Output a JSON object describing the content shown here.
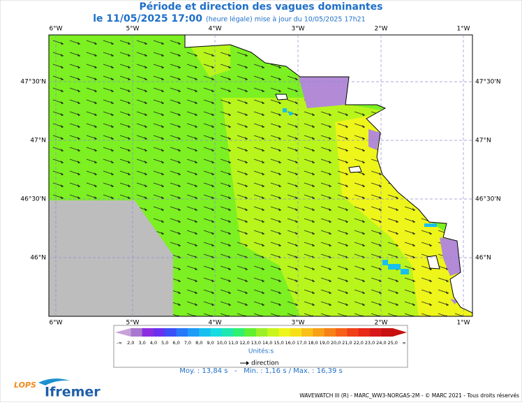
{
  "header": {
    "title": "Période et direction des vagues dominantes",
    "date": "le 11/05/2025 17:00",
    "note": "(heure légale) mise à jour du 10/05/2025 17h21"
  },
  "map": {
    "lon_labels": [
      "6°W",
      "5°W",
      "4°W",
      "3°W",
      "2°W",
      "1°W"
    ],
    "lat_labels": [
      "47°30'N",
      "47°N",
      "46°30'N",
      "46°N"
    ]
  },
  "legend": {
    "labels": [
      "-∞",
      "2,0",
      "3,0",
      "4,0",
      "5,0",
      "6,0",
      "7,0",
      "8,0",
      "9,0",
      "10,0",
      "11,0",
      "12,0",
      "13,0",
      "14,0",
      "15,0",
      "16,0",
      "17,0",
      "18,0",
      "19,0",
      "20,0",
      "21,0",
      "22,0",
      "23,0",
      "24,0",
      "25,0",
      "∞"
    ],
    "unit": "Unités:s",
    "direction": "direction"
  },
  "stats": "Moy. : 13,84 s   -   Min. : 1,16 s / Max. : 16,39 s",
  "footer": {
    "credit": "WAVEWATCH III (R) - MARC_WW3-NORGAS-2M - © MARC 2021 - Tous droits réservés",
    "logo_left": "LOPS",
    "logo_right": "Ifremer"
  }
}
